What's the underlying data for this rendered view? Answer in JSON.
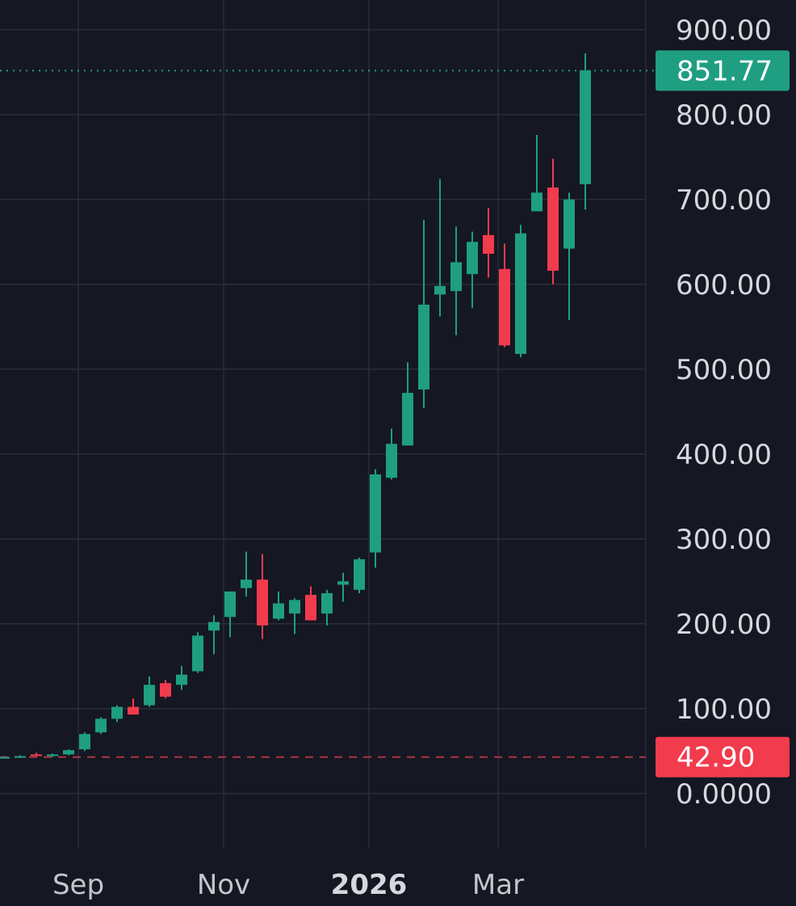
{
  "colors": {
    "background": "#151722",
    "grid": "#2a2d3a",
    "up": "#1f9e82",
    "down": "#f23b4d",
    "axis_text": "#d6d8de",
    "last_price_line": "#1f9e82",
    "reference_line": "#a83743"
  },
  "chart_data": {
    "type": "candlestick",
    "title": "",
    "ylim": [
      -65,
      935
    ],
    "y_ticks": [
      "900.00",
      "800.00",
      "700.00",
      "600.00",
      "500.00",
      "400.00",
      "300.00",
      "200.00",
      "100.00",
      "0.0000"
    ],
    "y_tick_values": [
      900,
      800,
      700,
      600,
      500,
      400,
      300,
      200,
      100,
      0
    ],
    "x_ticks": [
      {
        "label": "Sep",
        "index": 4.6,
        "bold": false
      },
      {
        "label": "Nov",
        "index": 13.6,
        "bold": false
      },
      {
        "label": "2026",
        "index": 22.6,
        "bold": true
      },
      {
        "label": "Mar",
        "index": 30.6,
        "bold": false
      }
    ],
    "grid": true,
    "last_price": {
      "label": "851.77",
      "value": 851.77
    },
    "reference_price": {
      "label": "42.90",
      "value": 42.9
    },
    "candles": [
      {
        "o": 42,
        "h": 44,
        "l": 41,
        "c": 43
      },
      {
        "o": 43,
        "h": 45,
        "l": 42,
        "c": 44
      },
      {
        "o": 46,
        "h": 48,
        "l": 44,
        "c": 44
      },
      {
        "o": 44,
        "h": 47,
        "l": 43,
        "c": 46
      },
      {
        "o": 46,
        "h": 52,
        "l": 45,
        "c": 51
      },
      {
        "o": 52,
        "h": 72,
        "l": 50,
        "c": 70
      },
      {
        "o": 72,
        "h": 90,
        "l": 70,
        "c": 88
      },
      {
        "o": 88,
        "h": 104,
        "l": 84,
        "c": 102
      },
      {
        "o": 102,
        "h": 112,
        "l": 93,
        "c": 93
      },
      {
        "o": 104,
        "h": 138,
        "l": 102,
        "c": 128
      },
      {
        "o": 130,
        "h": 134,
        "l": 112,
        "c": 114
      },
      {
        "o": 128,
        "h": 150,
        "l": 122,
        "c": 140
      },
      {
        "o": 144,
        "h": 190,
        "l": 142,
        "c": 186
      },
      {
        "o": 192,
        "h": 210,
        "l": 164,
        "c": 202
      },
      {
        "o": 208,
        "h": 238,
        "l": 184,
        "c": 238
      },
      {
        "o": 242,
        "h": 285,
        "l": 232,
        "c": 252
      },
      {
        "o": 252,
        "h": 282,
        "l": 182,
        "c": 198
      },
      {
        "o": 206,
        "h": 238,
        "l": 204,
        "c": 224
      },
      {
        "o": 212,
        "h": 230,
        "l": 188,
        "c": 228
      },
      {
        "o": 234,
        "h": 244,
        "l": 204,
        "c": 204
      },
      {
        "o": 212,
        "h": 240,
        "l": 198,
        "c": 236
      },
      {
        "o": 246,
        "h": 260,
        "l": 226,
        "c": 250
      },
      {
        "o": 240,
        "h": 278,
        "l": 236,
        "c": 276
      },
      {
        "o": 284,
        "h": 382,
        "l": 266,
        "c": 376
      },
      {
        "o": 372,
        "h": 430,
        "l": 370,
        "c": 412
      },
      {
        "o": 410,
        "h": 508,
        "l": 410,
        "c": 472
      },
      {
        "o": 476,
        "h": 676,
        "l": 454,
        "c": 576
      },
      {
        "o": 588,
        "h": 724,
        "l": 562,
        "c": 598
      },
      {
        "o": 592,
        "h": 668,
        "l": 540,
        "c": 626
      },
      {
        "o": 612,
        "h": 662,
        "l": 572,
        "c": 650
      },
      {
        "o": 658,
        "h": 690,
        "l": 608,
        "c": 636
      },
      {
        "o": 618,
        "h": 648,
        "l": 526,
        "c": 528
      },
      {
        "o": 518,
        "h": 670,
        "l": 514,
        "c": 660
      },
      {
        "o": 686,
        "h": 776,
        "l": 686,
        "c": 708
      },
      {
        "o": 714,
        "h": 748,
        "l": 600,
        "c": 616
      },
      {
        "o": 642,
        "h": 708,
        "l": 558,
        "c": 700
      },
      {
        "o": 718,
        "h": 872,
        "l": 688,
        "c": 852
      }
    ]
  }
}
